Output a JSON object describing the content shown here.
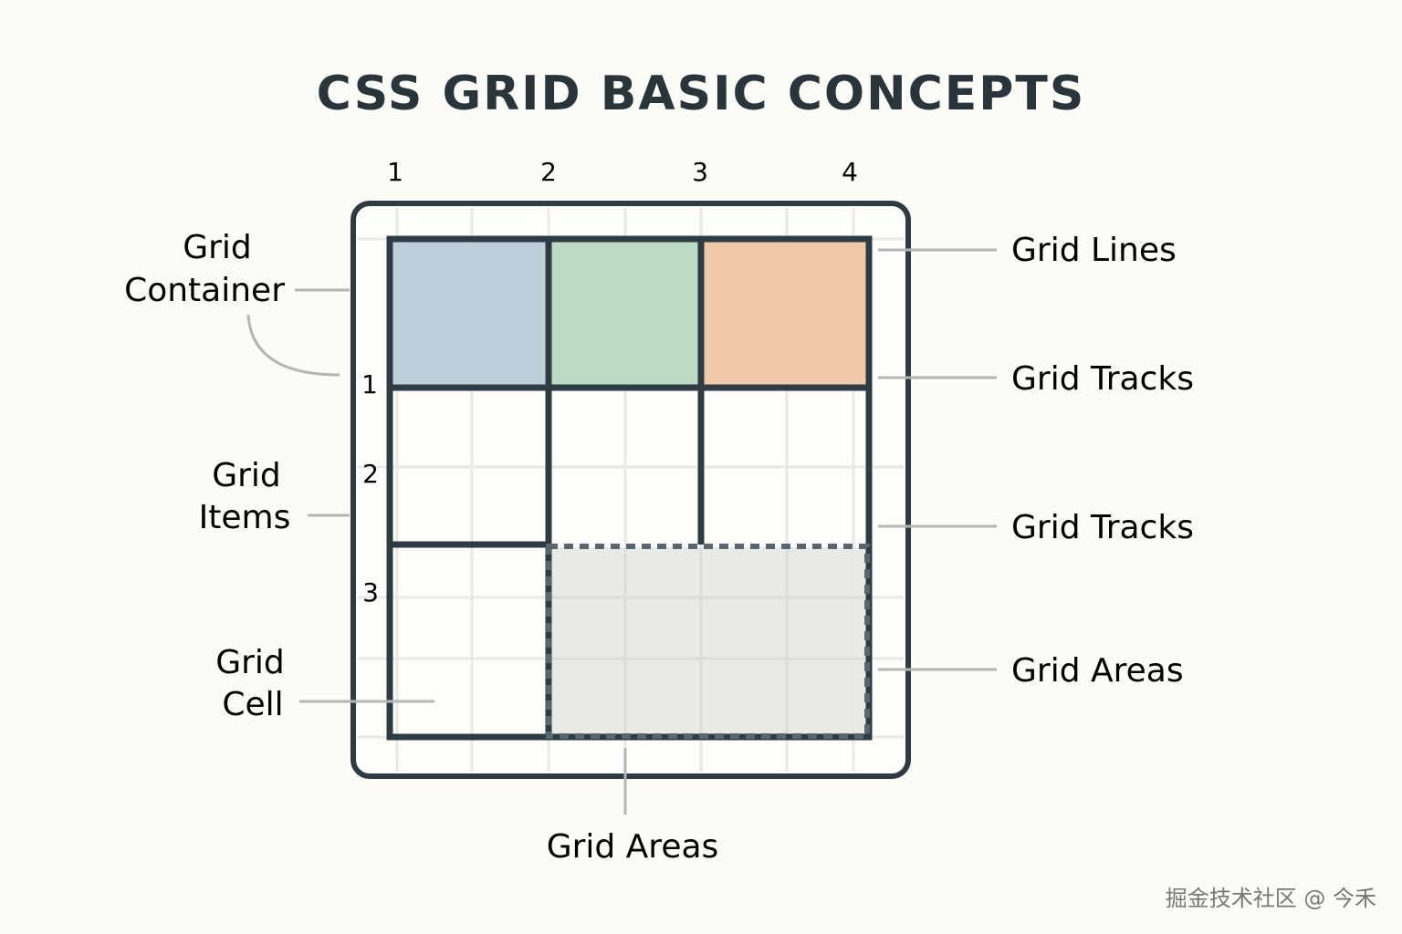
{
  "title": "CSS GRID BASIC CONCEPTS",
  "column_line_numbers": [
    "1",
    "2",
    "3",
    "4"
  ],
  "row_line_numbers": [
    "1",
    "2",
    "3"
  ],
  "left_labels": {
    "grid_container": [
      "Grid",
      "Container"
    ],
    "grid_items": [
      "Grid",
      "Items"
    ],
    "grid_cell": [
      "Grid",
      "Cell"
    ]
  },
  "right_labels": [
    "Grid Lines",
    "Grid Tracks",
    "Grid Tracks",
    "Grid Areas"
  ],
  "bottom_label": "Grid Areas",
  "watermark": "掘金技术社区 @ 今禾",
  "colors": {
    "stroke": "#2f3b43",
    "cell_blue": "#bccfdb",
    "cell_green": "#bddac5",
    "cell_orange": "#f0caa8",
    "area_grey": "#e7e7e5",
    "leader_line": "#b5b5b5",
    "faint_grid": "#e9e9e7"
  }
}
